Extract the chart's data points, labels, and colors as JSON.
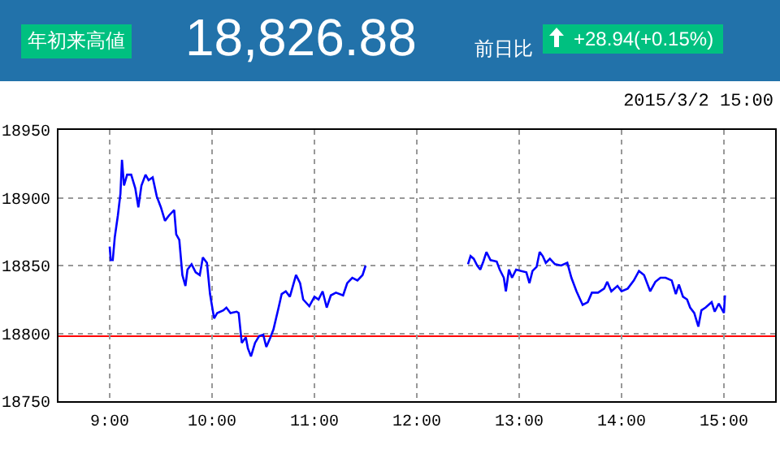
{
  "chart_data": {
    "type": "line",
    "title": "18,826.88",
    "annotations": [
      "年初来高値",
      "前日比",
      "+28.94(+0.15%)",
      "2015/3/2 15:00"
    ],
    "series": [
      {
        "color": "#0000ff",
        "x": [
          9.0,
          9.01,
          9.03,
          9.05,
          9.08,
          9.105,
          9.12,
          9.14,
          9.17,
          9.21,
          9.25,
          9.28,
          9.31,
          9.35,
          9.38,
          9.42,
          9.46,
          9.5,
          9.54,
          9.58,
          9.63,
          9.65,
          9.68,
          9.71,
          9.74,
          9.76,
          9.8,
          9.84,
          9.88,
          9.91,
          9.95,
          9.98,
          10.02,
          10.05,
          10.11,
          10.14,
          10.18,
          10.24,
          10.26,
          10.29,
          10.33,
          10.35,
          10.38,
          10.42,
          10.46,
          10.5,
          10.53,
          10.57,
          10.6,
          10.65,
          10.68,
          10.72,
          10.76,
          10.82,
          10.86,
          10.89,
          10.95,
          11.0,
          11.04,
          11.08,
          11.12,
          11.16,
          11.21,
          11.28,
          11.32,
          11.37,
          11.42,
          11.47,
          11.5,
          12.0,
          12.5,
          12.525,
          12.556,
          12.59,
          12.62,
          12.65,
          12.68,
          12.72,
          12.78,
          12.81,
          12.85,
          12.87,
          12.9,
          12.93,
          12.97,
          13.02,
          13.07,
          13.1,
          13.13,
          13.17,
          13.2,
          13.23,
          13.26,
          13.3,
          13.35,
          13.41,
          13.47,
          13.51,
          13.56,
          13.62,
          13.67,
          13.71,
          13.77,
          13.83,
          13.86,
          13.9,
          13.96,
          14.0,
          14.06,
          14.12,
          14.17,
          14.22,
          14.28,
          14.33,
          14.38,
          14.43,
          14.49,
          14.53,
          14.56,
          14.6,
          14.64,
          14.67,
          14.71,
          14.75,
          14.78,
          14.82,
          14.88,
          14.91,
          14.95,
          15.0,
          15.01
        ],
        "values": [
          18864,
          18854,
          18854,
          18871,
          18887,
          18903,
          18928,
          18909,
          18917,
          18917,
          18907,
          18893,
          18909,
          18917,
          18913,
          18915,
          18901,
          18893,
          18883,
          18887,
          18891,
          18873,
          18869,
          18843,
          18835,
          18847,
          18851,
          18845,
          18843,
          18856,
          18852,
          18829,
          18811,
          18815,
          18817,
          18819,
          18815,
          18816,
          18815,
          18793,
          18797,
          18789,
          18783,
          18793,
          18798,
          18799,
          18790,
          18797,
          18803,
          18819,
          18829,
          18831,
          18827,
          18843,
          18837,
          18825,
          18820,
          18827,
          18825,
          18831,
          18819,
          18828,
          18830,
          18828,
          18837,
          18841,
          18839,
          18843,
          18850,
          null,
          18851,
          18857,
          18855,
          18850,
          18847,
          18853,
          18860,
          18854,
          18853,
          18847,
          18841,
          18831,
          18847,
          18841,
          18847,
          18846,
          18845,
          18837,
          18846,
          18849,
          18860,
          18857,
          18852,
          18855,
          18851,
          18850,
          18852,
          18841,
          18831,
          18821,
          18823,
          18830,
          18830,
          18833,
          18838,
          18831,
          18835,
          18831,
          18833,
          18839,
          18846,
          18843,
          18831,
          18838,
          18841,
          18841,
          18839,
          18829,
          18836,
          18827,
          18825,
          18819,
          18815,
          18805,
          18817,
          18819,
          18823,
          18816,
          18822,
          18815,
          18828
        ]
      }
    ],
    "xlim": [
      8.5,
      15.5
    ],
    "xticks": [
      {
        "value": 9,
        "label": "9:00"
      },
      {
        "value": 10,
        "label": "10:00"
      },
      {
        "value": 11,
        "label": "11:00"
      },
      {
        "value": 12,
        "label": "12:00"
      },
      {
        "value": 13,
        "label": "13:00"
      },
      {
        "value": 14,
        "label": "14:00"
      },
      {
        "value": 15,
        "label": "15:00"
      }
    ],
    "ylim": [
      18750,
      18950
    ],
    "yticks": [
      18750,
      18800,
      18850,
      18900,
      18950
    ],
    "ref_lines": [
      {
        "axis": "y",
        "value": 18797.94,
        "color": "#ff0000"
      }
    ],
    "grid": true,
    "line_style": "solid",
    "marker": "none",
    "legend": false
  }
}
